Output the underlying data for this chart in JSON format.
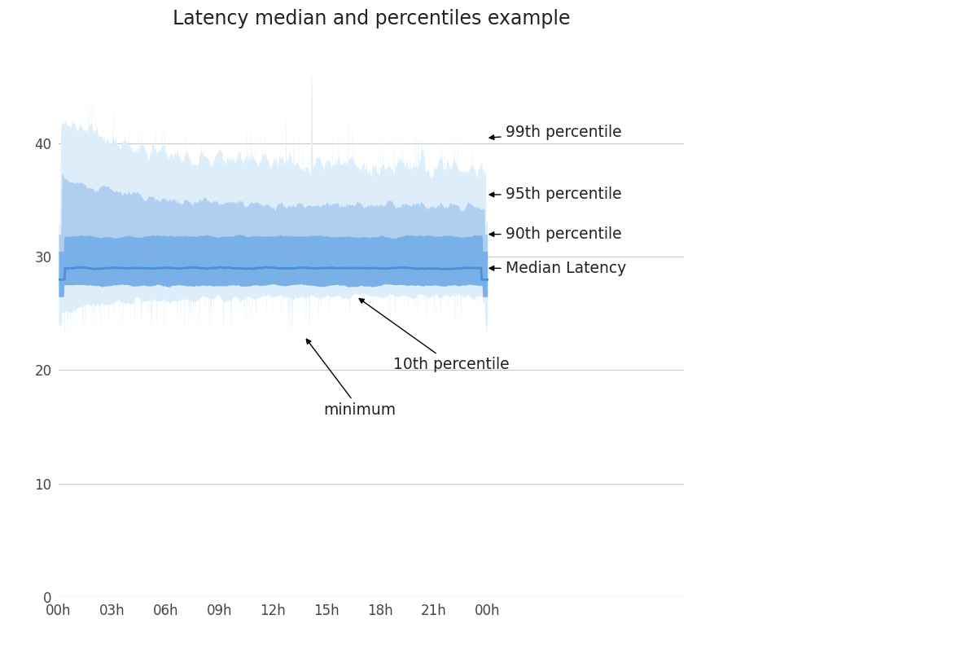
{
  "title": "Latency median and percentiles example",
  "title_fontsize": 17,
  "background_color": "#ffffff",
  "x_ticks_labels": [
    "00h",
    "03h",
    "06h",
    "09h",
    "12h",
    "15h",
    "18h",
    "21h",
    "00h"
  ],
  "y_ticks": [
    0,
    10,
    20,
    30,
    40
  ],
  "ylim": [
    0,
    48
  ],
  "n_points": 2000,
  "median_base": 29.0,
  "color_median": "#4a90d9",
  "color_p90_fill": "#7ab0e8",
  "color_p95_fill": "#aecfef",
  "color_p99_fill": "#cfe2f5",
  "color_min_fill": "#ddeefa",
  "annot_fontsize": 13.5,
  "annot_color": "#222222"
}
